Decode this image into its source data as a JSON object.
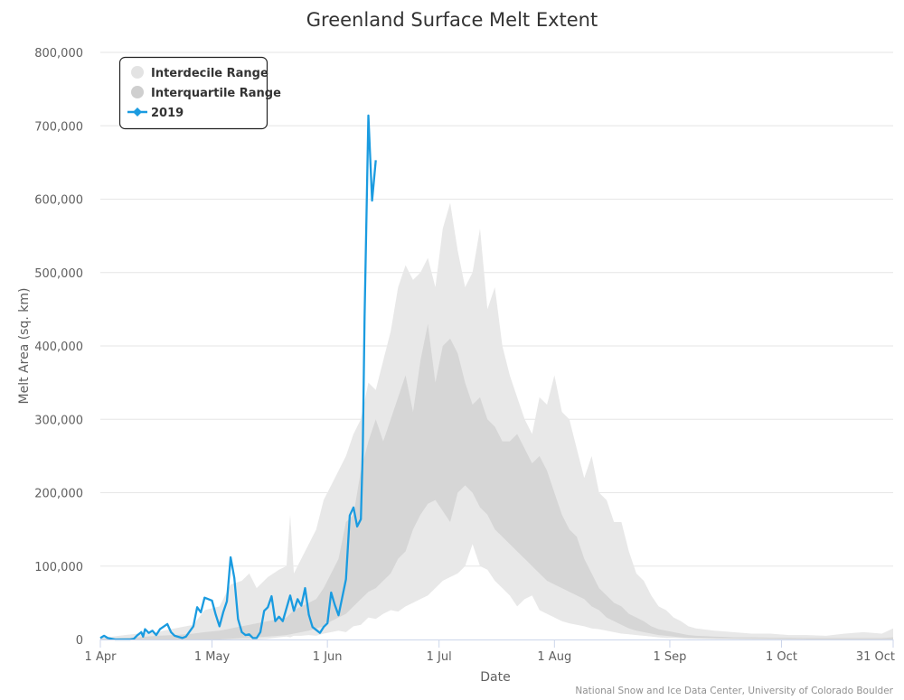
{
  "chart_data": {
    "type": "area",
    "title": "Greenland Surface Melt Extent",
    "xlabel": "Date",
    "ylabel": "Melt Area (sq. km)",
    "credit": "National Snow and Ice Data Center, University of Colorado Boulder",
    "x_unit": "days since 1 Apr",
    "xlim": [
      0,
      213
    ],
    "ylim": [
      0,
      800000
    ],
    "grid": true,
    "legend_position": "top-left",
    "x_ticks": [
      {
        "day": 0,
        "label": "1 Apr"
      },
      {
        "day": 30,
        "label": "1 May"
      },
      {
        "day": 61,
        "label": "1 Jun"
      },
      {
        "day": 91,
        "label": "1 Jul"
      },
      {
        "day": 122,
        "label": "1 Aug"
      },
      {
        "day": 153,
        "label": "1 Sep"
      },
      {
        "day": 183,
        "label": "1 Oct"
      },
      {
        "day": 213,
        "label": "31 Oct"
      }
    ],
    "y_ticks": [
      {
        "value": 0,
        "label": "0"
      },
      {
        "value": 100000,
        "label": "100,000"
      },
      {
        "value": 200000,
        "label": "200,000"
      },
      {
        "value": 300000,
        "label": "300,000"
      },
      {
        "value": 400000,
        "label": "400,000"
      },
      {
        "value": 500000,
        "label": "500,000"
      },
      {
        "value": 600000,
        "label": "600,000"
      },
      {
        "value": 700000,
        "label": "700,000"
      },
      {
        "value": 800000,
        "label": "800,000"
      }
    ],
    "series": [
      {
        "name": "Interdecile Range",
        "kind": "range",
        "color": "#e8e8e8",
        "x": [
          0,
          5,
          10,
          15,
          20,
          25,
          28,
          32,
          35,
          38,
          40,
          42,
          45,
          48,
          50,
          51,
          52,
          54,
          56,
          58,
          60,
          62,
          64,
          66,
          68,
          70,
          72,
          74,
          76,
          78,
          80,
          82,
          84,
          86,
          88,
          90,
          92,
          94,
          96,
          98,
          100,
          102,
          104,
          106,
          108,
          110,
          112,
          114,
          116,
          118,
          120,
          122,
          124,
          126,
          128,
          130,
          132,
          134,
          136,
          138,
          140,
          142,
          144,
          146,
          148,
          150,
          152,
          154,
          156,
          158,
          160,
          165,
          170,
          175,
          180,
          185,
          190,
          195,
          200,
          205,
          210,
          213
        ],
        "low": [
          0,
          0,
          0,
          0,
          0,
          0,
          0,
          0,
          0,
          0,
          0,
          0,
          1000,
          3000,
          4000,
          3000,
          5000,
          5000,
          6000,
          5000,
          8000,
          10000,
          12000,
          10000,
          18000,
          20000,
          30000,
          28000,
          35000,
          40000,
          38000,
          45000,
          50000,
          55000,
          60000,
          70000,
          80000,
          85000,
          90000,
          100000,
          130000,
          100000,
          95000,
          80000,
          70000,
          60000,
          45000,
          55000,
          60000,
          40000,
          35000,
          30000,
          25000,
          22000,
          20000,
          18000,
          15000,
          14000,
          12000,
          10000,
          8000,
          7000,
          6000,
          5000,
          4000,
          3000,
          2000,
          2000,
          1500,
          1000,
          1000,
          500,
          500,
          300,
          200,
          200,
          100,
          100,
          100,
          100,
          100,
          100
        ],
        "high": [
          2000,
          5000,
          8000,
          10000,
          15000,
          20000,
          40000,
          45000,
          75000,
          80000,
          90000,
          70000,
          85000,
          95000,
          100000,
          170000,
          90000,
          110000,
          130000,
          150000,
          190000,
          210000,
          230000,
          250000,
          280000,
          300000,
          350000,
          340000,
          380000,
          420000,
          480000,
          510000,
          490000,
          500000,
          520000,
          480000,
          560000,
          595000,
          530000,
          480000,
          500000,
          560000,
          450000,
          480000,
          400000,
          360000,
          330000,
          300000,
          280000,
          330000,
          320000,
          360000,
          310000,
          300000,
          260000,
          220000,
          250000,
          200000,
          190000,
          160000,
          160000,
          120000,
          90000,
          80000,
          60000,
          45000,
          40000,
          30000,
          25000,
          18000,
          15000,
          12000,
          10000,
          8000,
          8000,
          6000,
          6000,
          5000,
          8000,
          10000,
          8000,
          15000
        ]
      },
      {
        "name": "Interquartile Range",
        "kind": "range",
        "color": "#d6d6d6",
        "x": [
          0,
          5,
          10,
          15,
          20,
          25,
          28,
          32,
          35,
          38,
          40,
          42,
          45,
          48,
          50,
          52,
          54,
          56,
          58,
          60,
          62,
          64,
          66,
          68,
          70,
          72,
          74,
          76,
          78,
          80,
          82,
          84,
          86,
          88,
          90,
          92,
          94,
          96,
          98,
          100,
          102,
          104,
          106,
          108,
          110,
          112,
          114,
          116,
          118,
          120,
          122,
          124,
          126,
          128,
          130,
          132,
          134,
          136,
          138,
          140,
          142,
          144,
          146,
          148,
          150,
          152,
          154,
          156,
          158,
          160,
          165,
          170,
          175,
          180,
          185,
          190,
          195,
          200,
          205,
          210,
          213
        ],
        "low": [
          0,
          0,
          0,
          0,
          0,
          0,
          0,
          0,
          1000,
          2000,
          2000,
          3000,
          4000,
          5000,
          6000,
          8000,
          10000,
          12000,
          15000,
          18000,
          25000,
          30000,
          35000,
          45000,
          55000,
          65000,
          70000,
          80000,
          90000,
          110000,
          120000,
          150000,
          170000,
          185000,
          190000,
          175000,
          160000,
          200000,
          210000,
          200000,
          180000,
          170000,
          150000,
          140000,
          130000,
          120000,
          110000,
          100000,
          90000,
          80000,
          75000,
          70000,
          65000,
          60000,
          55000,
          45000,
          40000,
          30000,
          25000,
          20000,
          15000,
          12000,
          10000,
          8000,
          6000,
          5000,
          4000,
          3000,
          2500,
          2000,
          1500,
          1000,
          800,
          600,
          500,
          400,
          300,
          300,
          300,
          300,
          300
        ],
        "high": [
          1000,
          2000,
          3000,
          5000,
          6000,
          8000,
          10000,
          12000,
          15000,
          18000,
          20000,
          22000,
          25000,
          28000,
          30000,
          40000,
          45000,
          50000,
          55000,
          70000,
          90000,
          110000,
          160000,
          170000,
          230000,
          270000,
          300000,
          270000,
          300000,
          330000,
          360000,
          310000,
          380000,
          430000,
          350000,
          400000,
          410000,
          390000,
          350000,
          320000,
          330000,
          300000,
          290000,
          270000,
          270000,
          280000,
          260000,
          240000,
          250000,
          230000,
          200000,
          170000,
          150000,
          140000,
          110000,
          90000,
          70000,
          60000,
          50000,
          45000,
          35000,
          30000,
          25000,
          18000,
          14000,
          12000,
          10000,
          8000,
          6000,
          5000,
          4000,
          3000,
          3000,
          2500,
          2500,
          2000,
          2000,
          2000,
          2000,
          2000,
          3000
        ]
      },
      {
        "name": "2019",
        "kind": "line",
        "color": "#1a9be0",
        "x": [
          0,
          1,
          2,
          4,
          6,
          8,
          9,
          10,
          11,
          11.5,
          12,
          13,
          14,
          15,
          16,
          18,
          19,
          20,
          22,
          23,
          25,
          26,
          27,
          28,
          30,
          31,
          32,
          33,
          34,
          35,
          36,
          37,
          38,
          39,
          40,
          41,
          42,
          43,
          44,
          45,
          46,
          47,
          48,
          49,
          51,
          52,
          53,
          54,
          55,
          56,
          57,
          59,
          60,
          61,
          62,
          63,
          64,
          66,
          67,
          68,
          69,
          70,
          70.5,
          71,
          72,
          73,
          74
        ],
        "values": [
          2000,
          5000,
          2000,
          0,
          0,
          0,
          1000,
          6000,
          10000,
          4000,
          14000,
          9000,
          12000,
          6000,
          14000,
          21000,
          10000,
          5000,
          2000,
          4000,
          18000,
          44000,
          37000,
          57000,
          53000,
          34000,
          18000,
          37000,
          52000,
          112000,
          84000,
          28000,
          10000,
          6000,
          7000,
          2000,
          2000,
          10000,
          39000,
          44000,
          59000,
          25000,
          31000,
          25000,
          60000,
          39000,
          55000,
          46000,
          70000,
          34000,
          17000,
          9000,
          17000,
          22000,
          64000,
          47000,
          33000,
          82000,
          169000,
          180000,
          154000,
          164000,
          258000,
          440000,
          714000,
          598000,
          653000
        ]
      }
    ]
  }
}
